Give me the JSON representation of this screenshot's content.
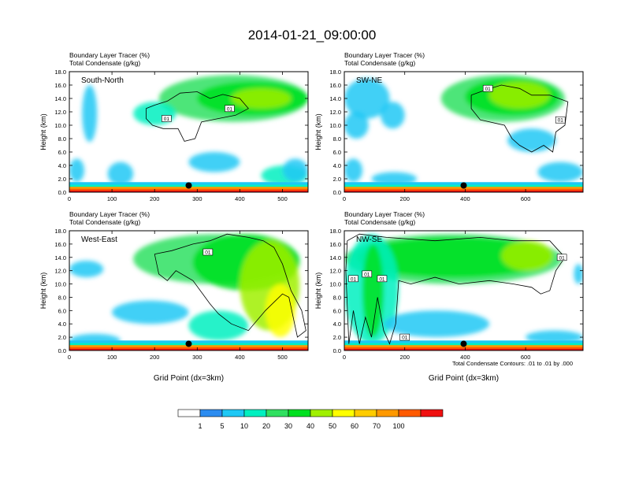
{
  "figure": {
    "title": "2014-01-21_09:00:00",
    "footnote": "Total Condensate Contours: .01 to .01 by .000",
    "xlabel": "Grid Point (dx=3km)"
  },
  "colorbar": {
    "colors": [
      "#ffffff",
      "#2c8cf0",
      "#1ec8f5",
      "#00f0c0",
      "#30e060",
      "#00e020",
      "#a0f000",
      "#ffff00",
      "#ffcc00",
      "#ff9900",
      "#ff5a00",
      "#f01010"
    ],
    "labels": [
      "1",
      "5",
      "10",
      "20",
      "30",
      "40",
      "50",
      "60",
      "70",
      "100"
    ]
  },
  "chart_data": [
    {
      "type": "heatmap",
      "panel_label": "South-North",
      "line1": "Boundary Layer Tracer   (%)",
      "line2": "Total Condensate   (g/kg)",
      "ylabel": "Height (km)",
      "xlabel": "",
      "xlim": [
        0,
        560
      ],
      "ylim": [
        0,
        18
      ],
      "xticks": [
        "0",
        "100",
        "200",
        "300",
        "400",
        "500"
      ],
      "yticks": [
        "0.0",
        "2.0",
        "4.0",
        "6.0",
        "8.0",
        "10.0",
        "12.0",
        "14.0",
        "16.0",
        "18.0"
      ],
      "contour_labels": [
        {
          "text": "01",
          "x": 228,
          "y": 11.0
        },
        {
          "text": "01",
          "x": 376,
          "y": 12.5
        }
      ],
      "marker": {
        "x": 280,
        "y": 1.0
      },
      "blobs": [
        {
          "x0": 210,
          "x1": 560,
          "y0": 10.5,
          "y1": 17.5,
          "level": 4
        },
        {
          "x0": 300,
          "x1": 560,
          "y0": 11.5,
          "y1": 16.5,
          "level": 5
        },
        {
          "x0": 380,
          "x1": 520,
          "y0": 12.5,
          "y1": 15.5,
          "level": 6
        },
        {
          "x0": 150,
          "x1": 250,
          "y0": 10.0,
          "y1": 13.5,
          "level": 3
        },
        {
          "x0": 30,
          "x1": 65,
          "y0": 7.5,
          "y1": 16.0,
          "level": 2
        },
        {
          "x0": 0,
          "x1": 35,
          "y0": 1.5,
          "y1": 5.0,
          "level": 2
        },
        {
          "x0": 280,
          "x1": 400,
          "y0": 3.0,
          "y1": 6.0,
          "level": 2
        },
        {
          "x0": 90,
          "x1": 150,
          "y0": 1.0,
          "y1": 4.5,
          "level": 2
        },
        {
          "x0": 450,
          "x1": 560,
          "y0": 1.0,
          "y1": 4.0,
          "level": 3
        },
        {
          "x0": 500,
          "x1": 560,
          "y0": 1.5,
          "y1": 5.0,
          "level": 2
        }
      ],
      "contour": [
        [
          180,
          12.5
        ],
        [
          200,
          13.0
        ],
        [
          230,
          13.6
        ],
        [
          260,
          14.8
        ],
        [
          300,
          15.0
        ],
        [
          330,
          14.0
        ],
        [
          360,
          14.6
        ],
        [
          400,
          14.0
        ],
        [
          420,
          12.5
        ],
        [
          390,
          11.5
        ],
        [
          350,
          11.0
        ],
        [
          310,
          10.5
        ],
        [
          295,
          8.0
        ],
        [
          270,
          7.6
        ],
        [
          255,
          9.5
        ],
        [
          220,
          9.5
        ],
        [
          195,
          10.0
        ],
        [
          180,
          11.0
        ],
        [
          180,
          12.5
        ]
      ]
    },
    {
      "type": "heatmap",
      "panel_label": "SW-NE",
      "line1": "Boundary Layer Tracer   (%)",
      "line2": "Total Condensate   (g/kg)",
      "ylabel": "Height (km)",
      "xlabel": "",
      "xlim": [
        0,
        790
      ],
      "ylim": [
        0,
        18
      ],
      "xticks": [
        "0",
        "200",
        "400",
        "600"
      ],
      "yticks": [
        "0.0",
        "2.0",
        "4.0",
        "6.0",
        "8.0",
        "10.0",
        "12.0",
        "14.0",
        "16.0",
        "18.0"
      ],
      "contour_labels": [
        {
          "text": "01",
          "x": 475,
          "y": 15.5
        },
        {
          "text": "01",
          "x": 715,
          "y": 10.8
        }
      ],
      "marker": {
        "x": 395,
        "y": 1.0
      },
      "blobs": [
        {
          "x0": 320,
          "x1": 730,
          "y0": 10.5,
          "y1": 17.5,
          "level": 4
        },
        {
          "x0": 400,
          "x1": 710,
          "y0": 11.5,
          "y1": 17.0,
          "level": 5
        },
        {
          "x0": 480,
          "x1": 680,
          "y0": 12.5,
          "y1": 16.5,
          "level": 6
        },
        {
          "x0": 0,
          "x1": 150,
          "y0": 11.0,
          "y1": 17.0,
          "level": 2
        },
        {
          "x0": 0,
          "x1": 80,
          "y0": 8.0,
          "y1": 12.0,
          "level": 2
        },
        {
          "x0": 120,
          "x1": 200,
          "y0": 9.5,
          "y1": 13.5,
          "level": 2
        },
        {
          "x0": 0,
          "x1": 60,
          "y0": 1.5,
          "y1": 5.0,
          "level": 2
        },
        {
          "x0": 540,
          "x1": 700,
          "y0": 6.0,
          "y1": 9.5,
          "level": 2
        },
        {
          "x0": 640,
          "x1": 790,
          "y0": 1.5,
          "y1": 4.5,
          "level": 2
        },
        {
          "x0": 90,
          "x1": 240,
          "y0": 1.0,
          "y1": 3.0,
          "level": 2
        }
      ],
      "contour": [
        [
          420,
          14.5
        ],
        [
          470,
          15.3
        ],
        [
          520,
          16.0
        ],
        [
          580,
          15.5
        ],
        [
          620,
          14.5
        ],
        [
          680,
          14.5
        ],
        [
          740,
          13.5
        ],
        [
          730,
          10.0
        ],
        [
          700,
          9.0
        ],
        [
          690,
          6.0
        ],
        [
          660,
          7.0
        ],
        [
          620,
          6.0
        ],
        [
          580,
          7.0
        ],
        [
          555,
          8.0
        ],
        [
          530,
          10.0
        ],
        [
          450,
          10.8
        ],
        [
          420,
          12.5
        ],
        [
          420,
          14.5
        ]
      ]
    },
    {
      "type": "heatmap",
      "panel_label": "West-East",
      "line1": "Boundary Layer Tracer   (%)",
      "line2": "Total Condensate   (g/kg)",
      "ylabel": "Height (km)",
      "xlabel": "Grid Point (dx=3km)",
      "xlim": [
        0,
        560
      ],
      "ylim": [
        0,
        18
      ],
      "xticks": [
        "0",
        "100",
        "200",
        "300",
        "400",
        "500"
      ],
      "yticks": [
        "0.0",
        "2.0",
        "4.0",
        "6.0",
        "8.0",
        "10.0",
        "12.0",
        "14.0",
        "16.0",
        "18.0"
      ],
      "contour_labels": [
        {
          "text": "01",
          "x": 325,
          "y": 14.8
        }
      ],
      "marker": {
        "x": 280,
        "y": 1.0
      },
      "blobs": [
        {
          "x0": 150,
          "x1": 540,
          "y0": 10.0,
          "y1": 17.5,
          "level": 4
        },
        {
          "x0": 290,
          "x1": 540,
          "y0": 9.0,
          "y1": 17.5,
          "level": 5
        },
        {
          "x0": 400,
          "x1": 540,
          "y0": 3.0,
          "y1": 16.5,
          "level": 6
        },
        {
          "x0": 460,
          "x1": 530,
          "y0": 2.0,
          "y1": 10.0,
          "level": 7
        },
        {
          "x0": 0,
          "x1": 80,
          "y0": 11.0,
          "y1": 13.5,
          "level": 2
        },
        {
          "x0": 100,
          "x1": 280,
          "y0": 4.0,
          "y1": 7.5,
          "level": 2
        },
        {
          "x0": 280,
          "x1": 420,
          "y0": 1.5,
          "y1": 6.0,
          "level": 3
        },
        {
          "x0": 0,
          "x1": 120,
          "y0": 0.5,
          "y1": 2.5,
          "level": 2
        }
      ],
      "contour": [
        [
          200,
          14.5
        ],
        [
          240,
          15.0
        ],
        [
          290,
          16.0
        ],
        [
          330,
          16.5
        ],
        [
          370,
          17.5
        ],
        [
          420,
          17.0
        ],
        [
          455,
          16.5
        ],
        [
          480,
          15.5
        ],
        [
          500,
          13.0
        ],
        [
          520,
          9.0
        ],
        [
          545,
          6.0
        ],
        [
          555,
          3.0
        ],
        [
          535,
          2.0
        ],
        [
          515,
          8.0
        ],
        [
          500,
          8.5
        ],
        [
          460,
          6.0
        ],
        [
          420,
          3.0
        ],
        [
          380,
          4.0
        ],
        [
          350,
          5.5
        ],
        [
          330,
          7.0
        ],
        [
          290,
          10.5
        ],
        [
          250,
          12.0
        ],
        [
          230,
          10.5
        ],
        [
          210,
          11.5
        ],
        [
          200,
          14.5
        ]
      ]
    },
    {
      "type": "heatmap",
      "panel_label": "NW-SE",
      "line1": "Boundary Layer Tracer   (%)",
      "line2": "Total Condensate   (g/kg)",
      "ylabel": "Height (km)",
      "xlabel": "Grid Point (dx=3km)",
      "xlim": [
        0,
        790
      ],
      "ylim": [
        0,
        18
      ],
      "xticks": [
        "0",
        "200",
        "400",
        "600"
      ],
      "yticks": [
        "0.0",
        "2.0",
        "4.0",
        "6.0",
        "8.0",
        "10.0",
        "12.0",
        "14.0",
        "16.0",
        "18.0"
      ],
      "contour_labels": [
        {
          "text": "01",
          "x": 30,
          "y": 10.8
        },
        {
          "text": "01",
          "x": 75,
          "y": 11.5
        },
        {
          "text": "01",
          "x": 125,
          "y": 10.8
        },
        {
          "text": "01",
          "x": 200,
          "y": 2.0
        },
        {
          "text": "01",
          "x": 720,
          "y": 14.0
        }
      ],
      "marker": {
        "x": 395,
        "y": 1.0
      },
      "blobs": [
        {
          "x0": 0,
          "x1": 720,
          "y0": 10.0,
          "y1": 17.5,
          "level": 4
        },
        {
          "x0": 40,
          "x1": 690,
          "y0": 11.0,
          "y1": 17.0,
          "level": 5
        },
        {
          "x0": 520,
          "x1": 690,
          "y0": 12.0,
          "y1": 16.5,
          "level": 6
        },
        {
          "x0": 0,
          "x1": 180,
          "y0": 1.0,
          "y1": 17.5,
          "level": 3
        },
        {
          "x0": 60,
          "x1": 130,
          "y0": 2.0,
          "y1": 16.0,
          "level": 5
        },
        {
          "x0": 130,
          "x1": 480,
          "y0": 2.0,
          "y1": 6.0,
          "level": 2
        },
        {
          "x0": 760,
          "x1": 790,
          "y0": 10.0,
          "y1": 13.0,
          "level": 2
        },
        {
          "x0": 600,
          "x1": 790,
          "y0": 1.0,
          "y1": 3.0,
          "level": 2
        }
      ],
      "contour": [
        [
          10,
          16.5
        ],
        [
          50,
          17.5
        ],
        [
          140,
          17.0
        ],
        [
          300,
          16.5
        ],
        [
          450,
          17.0
        ],
        [
          560,
          16.5
        ],
        [
          680,
          16.5
        ],
        [
          730,
          14.0
        ],
        [
          700,
          12.0
        ],
        [
          680,
          9.0
        ],
        [
          650,
          8.5
        ],
        [
          620,
          9.5
        ],
        [
          560,
          10.0
        ],
        [
          480,
          10.5
        ],
        [
          380,
          10.0
        ],
        [
          300,
          11.0
        ],
        [
          220,
          10.0
        ],
        [
          180,
          10.5
        ],
        [
          170,
          4.0
        ],
        [
          150,
          1.0
        ],
        [
          130,
          3.0
        ],
        [
          110,
          8.0
        ],
        [
          90,
          2.0
        ],
        [
          70,
          5.0
        ],
        [
          50,
          1.0
        ],
        [
          30,
          6.0
        ],
        [
          15,
          1.0
        ],
        [
          5,
          12.0
        ],
        [
          10,
          16.5
        ]
      ]
    }
  ]
}
